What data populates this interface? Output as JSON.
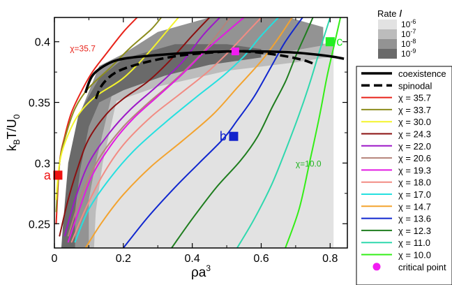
{
  "chart_data": {
    "type": "line",
    "xlabel": {
      "base": "ρa",
      "sup": "3"
    },
    "ylabel": {
      "base": "k",
      "sub1": "B",
      "mid": "T/U",
      "sub2": "0"
    },
    "xlim": [
      0,
      0.85
    ],
    "ylim": [
      0.23,
      0.42
    ],
    "x_ticks": [
      0,
      0.2,
      0.4,
      0.6,
      0.8
    ],
    "x_tick_labels": [
      "0",
      "0.2",
      "0.4",
      "0.6",
      "0.8"
    ],
    "y_ticks": [
      0.25,
      0.3,
      0.35,
      0.4
    ],
    "y_tick_labels": [
      "0.25",
      "0.3",
      "0.35",
      "0.4"
    ],
    "grid": false,
    "rate_legend": {
      "title": "Rate",
      "title_symbol": "I",
      "levels": [
        {
          "label_base": "10",
          "label_exp": "-6",
          "color": "#e2e2e2"
        },
        {
          "label_base": "10",
          "label_exp": "-7",
          "color": "#bcbcbc"
        },
        {
          "label_base": "10",
          "label_exp": "-8",
          "color": "#939393"
        },
        {
          "label_base": "10",
          "label_exp": "-9",
          "color": "#6a6a6a"
        }
      ]
    },
    "rate_regions": [
      {
        "level": "10^-6",
        "color": "#e2e2e2",
        "points": [
          [
            0.1,
            0.23
          ],
          [
            0.1,
            0.27
          ],
          [
            0.12,
            0.3
          ],
          [
            0.17,
            0.36
          ],
          [
            0.3,
            0.372
          ],
          [
            0.5,
            0.385
          ],
          [
            0.7,
            0.393
          ],
          [
            0.81,
            0.4
          ],
          [
            0.81,
            0.23
          ]
        ]
      },
      {
        "level": "10^-7",
        "color": "#bcbcbc",
        "points": [
          [
            0.1,
            0.23
          ],
          [
            0.1,
            0.27
          ],
          [
            0.12,
            0.3
          ],
          [
            0.17,
            0.36
          ],
          [
            0.3,
            0.372
          ],
          [
            0.5,
            0.385
          ],
          [
            0.7,
            0.393
          ],
          [
            0.81,
            0.4
          ],
          [
            0.81,
            0.388
          ],
          [
            0.7,
            0.383
          ],
          [
            0.5,
            0.376
          ],
          [
            0.3,
            0.363
          ],
          [
            0.18,
            0.351
          ],
          [
            0.14,
            0.3
          ],
          [
            0.12,
            0.26
          ],
          [
            0.115,
            0.23
          ]
        ]
      },
      {
        "level": "10^-8",
        "color": "#939393",
        "points": [
          [
            0.1,
            0.23
          ],
          [
            0.1,
            0.27
          ],
          [
            0.12,
            0.3
          ],
          [
            0.17,
            0.36
          ],
          [
            0.3,
            0.372
          ],
          [
            0.5,
            0.385
          ],
          [
            0.7,
            0.393
          ],
          [
            0.78,
            0.397
          ],
          [
            0.78,
            0.412
          ],
          [
            0.68,
            0.42
          ],
          [
            0.45,
            0.42
          ],
          [
            0.3,
            0.408
          ],
          [
            0.2,
            0.39
          ],
          [
            0.13,
            0.38
          ],
          [
            0.08,
            0.345
          ],
          [
            0.055,
            0.3
          ],
          [
            0.04,
            0.25
          ],
          [
            0.03,
            0.23
          ]
        ]
      },
      {
        "level": "10^-9",
        "color": "#6a6a6a",
        "points": [
          [
            0.06,
            0.23
          ],
          [
            0.06,
            0.26
          ],
          [
            0.075,
            0.295
          ],
          [
            0.1,
            0.33
          ],
          [
            0.13,
            0.35
          ],
          [
            0.2,
            0.36
          ],
          [
            0.32,
            0.372
          ],
          [
            0.45,
            0.381
          ],
          [
            0.6,
            0.387
          ],
          [
            0.6,
            0.394
          ],
          [
            0.5,
            0.398
          ],
          [
            0.35,
            0.398
          ],
          [
            0.2,
            0.386
          ],
          [
            0.13,
            0.37
          ],
          [
            0.07,
            0.34
          ],
          [
            0.04,
            0.3
          ],
          [
            0.025,
            0.25
          ],
          [
            0.02,
            0.23
          ]
        ]
      }
    ],
    "boundaries": [
      {
        "name": "coexistence",
        "style": "solid",
        "color": "#000000",
        "x": [
          0.09,
          0.11,
          0.15,
          0.2,
          0.3,
          0.4,
          0.5,
          0.6,
          0.7,
          0.8,
          0.84
        ],
        "y": [
          0.358,
          0.372,
          0.381,
          0.386,
          0.389,
          0.391,
          0.392,
          0.392,
          0.391,
          0.388,
          0.386
        ]
      },
      {
        "name": "spinodal",
        "style": "dashed",
        "color": "#000000",
        "x": [
          0.12,
          0.14,
          0.18,
          0.25,
          0.35,
          0.45,
          0.55,
          0.65,
          0.72,
          0.76
        ],
        "y": [
          0.353,
          0.365,
          0.375,
          0.382,
          0.388,
          0.391,
          0.392,
          0.389,
          0.385,
          0.381
        ]
      }
    ],
    "series": [
      {
        "name": "χ = 35.7",
        "color": "#e8231a",
        "x": [
          0.005,
          0.015,
          0.03,
          0.05,
          0.08,
          0.11,
          0.15,
          0.2,
          0.24
        ],
        "y": [
          0.25,
          0.3,
          0.322,
          0.342,
          0.36,
          0.375,
          0.39,
          0.408,
          0.42
        ]
      },
      {
        "name": "χ = 33.7",
        "color": "#8c8c1d",
        "x": [
          0.005,
          0.015,
          0.03,
          0.06,
          0.1,
          0.16,
          0.22,
          0.28,
          0.31
        ],
        "y": [
          0.26,
          0.3,
          0.32,
          0.345,
          0.362,
          0.378,
          0.395,
          0.41,
          0.42
        ]
      },
      {
        "name": "χ = 30.0",
        "color": "#f4f42c",
        "x": [
          0.005,
          0.015,
          0.035,
          0.07,
          0.12,
          0.2,
          0.27,
          0.33,
          0.36
        ],
        "y": [
          0.27,
          0.3,
          0.32,
          0.34,
          0.355,
          0.37,
          0.39,
          0.41,
          0.42
        ]
      },
      {
        "name": "χ = 24.3",
        "color": "#8b1010",
        "x": [
          0.015,
          0.04,
          0.07,
          0.1,
          0.15,
          0.2,
          0.27,
          0.33,
          0.4,
          0.45
        ],
        "y": [
          0.24,
          0.27,
          0.298,
          0.32,
          0.34,
          0.353,
          0.367,
          0.383,
          0.405,
          0.42
        ]
      },
      {
        "name": "χ = 22.0",
        "color": "#9d19c8",
        "x": [
          0.03,
          0.06,
          0.1,
          0.16,
          0.22,
          0.3,
          0.37,
          0.43,
          0.48
        ],
        "y": [
          0.24,
          0.27,
          0.3,
          0.325,
          0.344,
          0.364,
          0.383,
          0.405,
          0.42
        ]
      },
      {
        "name": "χ = 20.6",
        "color": "#b5837a",
        "x": [
          0.04,
          0.08,
          0.13,
          0.2,
          0.27,
          0.34,
          0.42,
          0.47,
          0.51
        ],
        "y": [
          0.24,
          0.275,
          0.304,
          0.33,
          0.349,
          0.366,
          0.388,
          0.405,
          0.42
        ]
      },
      {
        "name": "χ = 19.3",
        "color": "#e21ae2",
        "x": [
          0.04,
          0.07,
          0.11,
          0.17,
          0.23,
          0.3,
          0.37,
          0.44,
          0.5,
          0.55
        ],
        "y": [
          0.235,
          0.26,
          0.29,
          0.317,
          0.337,
          0.355,
          0.373,
          0.393,
          0.408,
          0.42
        ]
      },
      {
        "name": "χ = 18.0",
        "color": "#f28b83",
        "x": [
          0.05,
          0.09,
          0.14,
          0.2,
          0.28,
          0.36,
          0.44,
          0.5,
          0.56,
          0.6
        ],
        "y": [
          0.235,
          0.262,
          0.29,
          0.315,
          0.338,
          0.356,
          0.374,
          0.39,
          0.408,
          0.42
        ]
      },
      {
        "name": "χ = 17.0",
        "color": "#25e0e0",
        "x": [
          0.06,
          0.1,
          0.16,
          0.23,
          0.32,
          0.41,
          0.49,
          0.55,
          0.6,
          0.65
        ],
        "y": [
          0.235,
          0.262,
          0.287,
          0.31,
          0.333,
          0.354,
          0.372,
          0.388,
          0.405,
          0.42
        ]
      },
      {
        "name": "χ = 14.7",
        "color": "#f3a32f",
        "x": [
          0.09,
          0.14,
          0.2,
          0.28,
          0.37,
          0.46,
          0.53,
          0.6,
          0.65,
          0.69
        ],
        "y": [
          0.23,
          0.252,
          0.274,
          0.297,
          0.318,
          0.34,
          0.362,
          0.384,
          0.403,
          0.42
        ]
      },
      {
        "name": "χ = 13.6",
        "color": "#1027cf",
        "x": [
          0.2,
          0.27,
          0.35,
          0.42,
          0.49,
          0.53,
          0.58,
          0.63,
          0.67,
          0.72
        ],
        "y": [
          0.23,
          0.255,
          0.28,
          0.3,
          0.32,
          0.335,
          0.355,
          0.38,
          0.4,
          0.42
        ]
      },
      {
        "name": "χ = 12.3",
        "color": "#1e7d1e",
        "x": [
          0.34,
          0.4,
          0.47,
          0.54,
          0.59,
          0.63,
          0.67,
          0.7,
          0.73,
          0.75
        ],
        "y": [
          0.23,
          0.254,
          0.28,
          0.302,
          0.322,
          0.345,
          0.367,
          0.388,
          0.407,
          0.42
        ]
      },
      {
        "name": "χ = 11.0",
        "color": "#2fd8ae",
        "x": [
          0.53,
          0.58,
          0.63,
          0.67,
          0.71,
          0.74,
          0.77,
          0.8
        ],
        "y": [
          0.23,
          0.254,
          0.282,
          0.31,
          0.34,
          0.365,
          0.393,
          0.42
        ]
      },
      {
        "name": "χ = 10.0",
        "color": "#33ee16",
        "x": [
          0.67,
          0.71,
          0.74,
          0.77,
          0.79,
          0.81,
          0.83
        ],
        "y": [
          0.23,
          0.262,
          0.3,
          0.34,
          0.37,
          0.395,
          0.42
        ]
      }
    ],
    "markers": [
      {
        "label": "a",
        "x": 0.01,
        "y": 0.29,
        "color": "#ee1111",
        "label_side": "left"
      },
      {
        "label": "b",
        "x": 0.52,
        "y": 0.322,
        "color": "#1122cc",
        "label_side": "left"
      },
      {
        "label": "c",
        "x": 0.8,
        "y": 0.4,
        "color": "#22ee22",
        "label_side": "right"
      }
    ],
    "critical_point": {
      "name": "critical point",
      "x": 0.525,
      "y": 0.392,
      "color": "#f21cf2"
    },
    "annotations": [
      {
        "text": "χ=35.7",
        "x": 0.045,
        "y": 0.392,
        "color": "#e8231a"
      },
      {
        "text": "χ=10.0",
        "x": 0.7,
        "y": 0.297,
        "color": "#20b220"
      }
    ],
    "legend": {
      "placement": "right",
      "entries": [
        {
          "label": "coexistence",
          "kind": "line",
          "style": "solid",
          "color": "#000000"
        },
        {
          "label": "spinodal",
          "kind": "line",
          "style": "dashed",
          "color": "#000000"
        },
        {
          "label": "χ = 35.7",
          "kind": "line",
          "style": "solid",
          "color": "#e8231a"
        },
        {
          "label": "χ = 33.7",
          "kind": "line",
          "style": "solid",
          "color": "#8c8c1d"
        },
        {
          "label": "χ = 30.0",
          "kind": "line",
          "style": "solid",
          "color": "#f4f42c"
        },
        {
          "label": "χ = 24.3",
          "kind": "line",
          "style": "solid",
          "color": "#8b1010"
        },
        {
          "label": "χ = 22.0",
          "kind": "line",
          "style": "solid",
          "color": "#9d19c8"
        },
        {
          "label": "χ = 20.6",
          "kind": "line",
          "style": "solid",
          "color": "#b5837a"
        },
        {
          "label": "χ = 19.3",
          "kind": "line",
          "style": "solid",
          "color": "#e21ae2"
        },
        {
          "label": "χ = 18.0",
          "kind": "line",
          "style": "solid",
          "color": "#f28b83"
        },
        {
          "label": "χ = 17.0",
          "kind": "line",
          "style": "solid",
          "color": "#25e0e0"
        },
        {
          "label": "χ = 14.7",
          "kind": "line",
          "style": "solid",
          "color": "#f3a32f"
        },
        {
          "label": "χ = 13.6",
          "kind": "line",
          "style": "solid",
          "color": "#1027cf"
        },
        {
          "label": "χ = 12.3",
          "kind": "line",
          "style": "solid",
          "color": "#1e7d1e"
        },
        {
          "label": "χ = 11.0",
          "kind": "line",
          "style": "solid",
          "color": "#2fd8ae"
        },
        {
          "label": "χ = 10.0",
          "kind": "line",
          "style": "solid",
          "color": "#33ee16"
        },
        {
          "label": "critical point",
          "kind": "dot",
          "color": "#f21cf2"
        }
      ]
    }
  }
}
